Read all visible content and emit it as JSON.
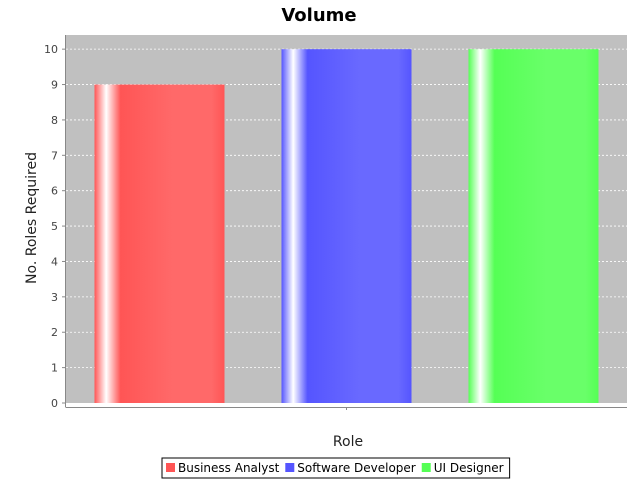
{
  "chart_data": {
    "type": "bar",
    "title": "Volume",
    "xlabel": "Role",
    "ylabel": "No. Roles Required",
    "ylim": [
      0,
      10.4
    ],
    "yticks": [
      0,
      1,
      2,
      3,
      4,
      5,
      6,
      7,
      8,
      9,
      10
    ],
    "grid": true,
    "legend_position": "bottom",
    "plot_background": "#c0c0c0",
    "series": [
      {
        "name": "Business Analyst",
        "values": [
          9
        ],
        "color": "#ff5555"
      },
      {
        "name": "Software Developer",
        "values": [
          10
        ],
        "color": "#5555ff"
      },
      {
        "name": "UI Designer",
        "values": [
          10
        ],
        "color": "#55ff55"
      }
    ]
  }
}
